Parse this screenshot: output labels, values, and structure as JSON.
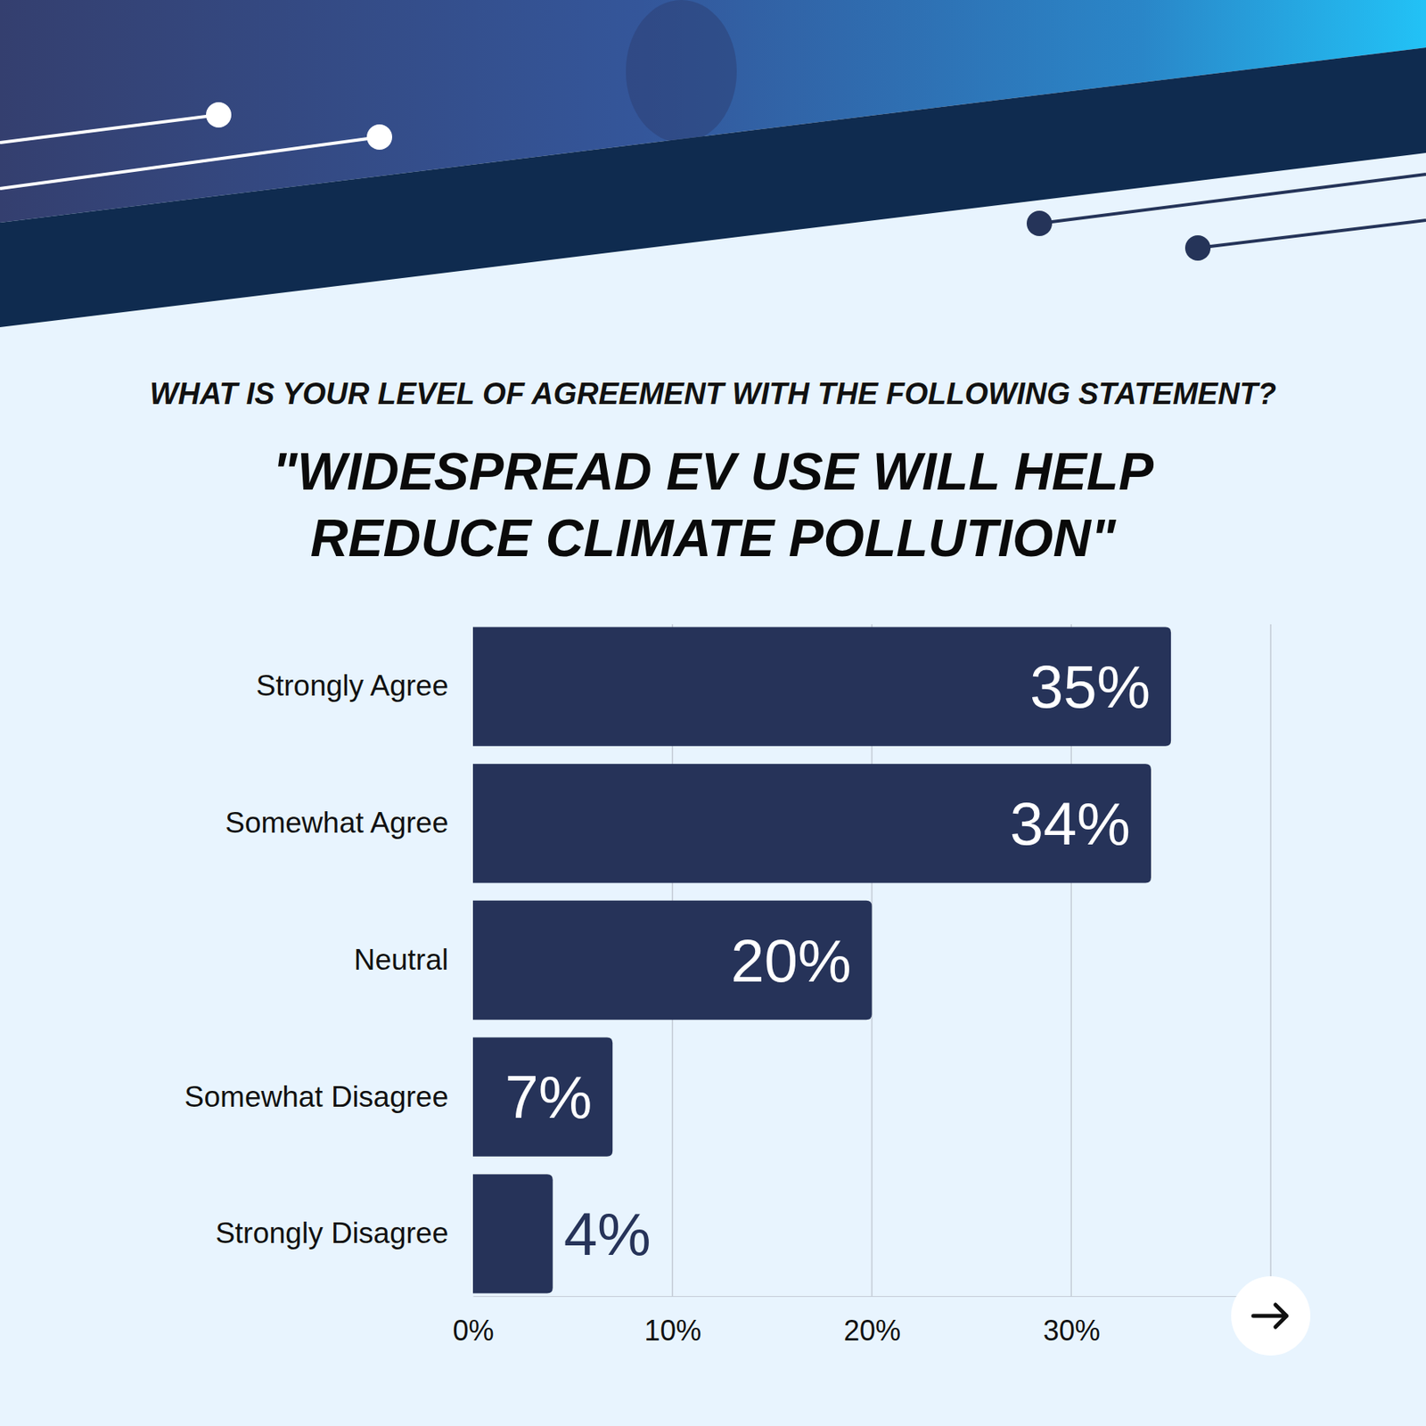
{
  "chart_data": {
    "type": "bar",
    "orientation": "horizontal",
    "subtitle": "WHAT IS YOUR LEVEL OF AGREEMENT WITH THE FOLLOWING STATEMENT?",
    "title": "\"WIDESPREAD EV USE WILL HELP REDUCE CLIMATE POLLUTION\"",
    "categories": [
      "Strongly Agree",
      "Somewhat Agree",
      "Neutral",
      "Somewhat Disagree",
      "Strongly Disagree"
    ],
    "values": [
      35,
      34,
      20,
      7,
      4
    ],
    "value_labels": [
      "35%",
      "34%",
      "20%",
      "7%",
      "4%"
    ],
    "color": "#263359",
    "xlim": [
      0,
      40
    ],
    "xticks": [
      {
        "value": 0,
        "label": "0%"
      },
      {
        "value": 10,
        "label": "10%"
      },
      {
        "value": 20,
        "label": "20%"
      },
      {
        "value": 30,
        "label": "30%"
      }
    ],
    "grid": true,
    "data_labels": true
  }
}
